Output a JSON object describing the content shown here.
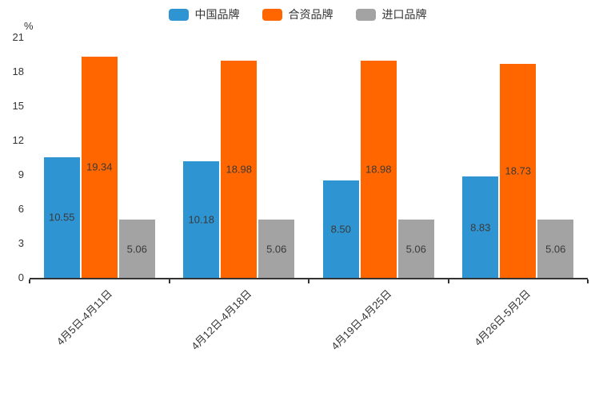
{
  "chart_data": {
    "type": "bar",
    "title": "",
    "unit_label": "%",
    "xlabel": "",
    "ylabel": "%",
    "ylim": [
      0,
      21
    ],
    "yticks": [
      0,
      3,
      6,
      9,
      12,
      15,
      18,
      21
    ],
    "grid": false,
    "legend_position": "top",
    "categories": [
      "4月5日-4月11日",
      "4月12日-4月18日",
      "4月19日-4月25日",
      "4月26日-5月2日"
    ],
    "series": [
      {
        "name": "中国品牌",
        "color": "#2E94D2",
        "values": [
          10.55,
          10.18,
          8.5,
          8.83
        ],
        "labels": [
          "10.55",
          "10.18",
          "8.50",
          "8.83"
        ]
      },
      {
        "name": "合资品牌",
        "color": "#FF6600",
        "values": [
          19.34,
          18.98,
          18.98,
          18.73
        ],
        "labels": [
          "19.34",
          "18.98",
          "18.98",
          "18.73"
        ]
      },
      {
        "name": "进口品牌",
        "color": "#A3A3A3",
        "values": [
          5.06,
          5.06,
          5.06,
          5.06
        ],
        "labels": [
          "5.06",
          "5.06",
          "5.06",
          "5.06"
        ]
      }
    ],
    "colors": {
      "axis": "#333333",
      "text": "#333333",
      "bar_label": "#3a3a3a",
      "background": "#ffffff"
    }
  }
}
